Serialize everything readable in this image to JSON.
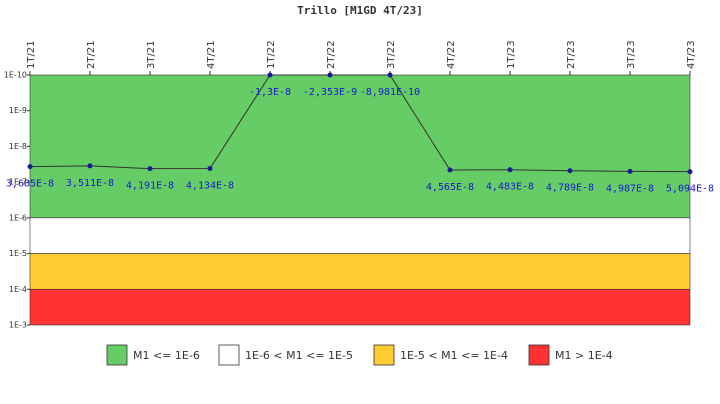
{
  "chart_data": {
    "type": "line",
    "title": "Trillo [M1GD 4T/23]",
    "categories": [
      "1T/21",
      "2T/21",
      "3T/21",
      "4T/21",
      "1T/22",
      "2T/22",
      "3T/22",
      "4T/22",
      "1T/23",
      "2T/23",
      "3T/23",
      "4T/23"
    ],
    "series": [
      {
        "name": "M1GD",
        "color": "#333333",
        "marker_color": "#1a1a99",
        "values": [
          3.685e-08,
          3.511e-08,
          4.191e-08,
          4.134e-08,
          -1.3e-08,
          -2.353e-09,
          -8.981e-10,
          4.565e-08,
          4.483e-08,
          4.789e-08,
          4.987e-08,
          5.094e-08
        ],
        "value_labels": [
          "3,685E-8",
          "3,511E-8",
          "4,191E-8",
          "4,134E-8",
          "-1,3E-8",
          "-2,353E-9",
          "-8,981E-10",
          "4,565E-8",
          "4,483E-8",
          "4,789E-8",
          "4,987E-8",
          "5,094E-8"
        ]
      }
    ],
    "ylim": [
      1e-10,
      0.001
    ],
    "log_scale": true,
    "yticks": [
      {
        "value": 1e-10,
        "label": "1E-10"
      },
      {
        "value": 1e-09,
        "label": "1E-9"
      },
      {
        "value": 1e-08,
        "label": "1E-8"
      },
      {
        "value": 1e-07,
        "label": "1E-7"
      },
      {
        "value": 1e-06,
        "label": "1E-6"
      },
      {
        "value": 1e-05,
        "label": "1E-5"
      },
      {
        "value": 0.0001,
        "label": "1E-4"
      },
      {
        "value": 0.001,
        "label": "1E-3"
      }
    ],
    "bands": [
      {
        "name": "M1 <= 1E-6",
        "color": "#66cc66",
        "from": 1e-10,
        "to": 1e-06
      },
      {
        "name": "1E-6 < M1 <= 1E-5",
        "color": "#ffffff",
        "from": 1e-06,
        "to": 1e-05
      },
      {
        "name": "1E-5 < M1 <= 1E-4",
        "color": "#ffcc33",
        "from": 1e-05,
        "to": 0.0001
      },
      {
        "name": "M1 > 1E-4",
        "color": "#ff3333",
        "from": 0.0001,
        "to": 0.001
      }
    ],
    "legend": "bottom"
  }
}
